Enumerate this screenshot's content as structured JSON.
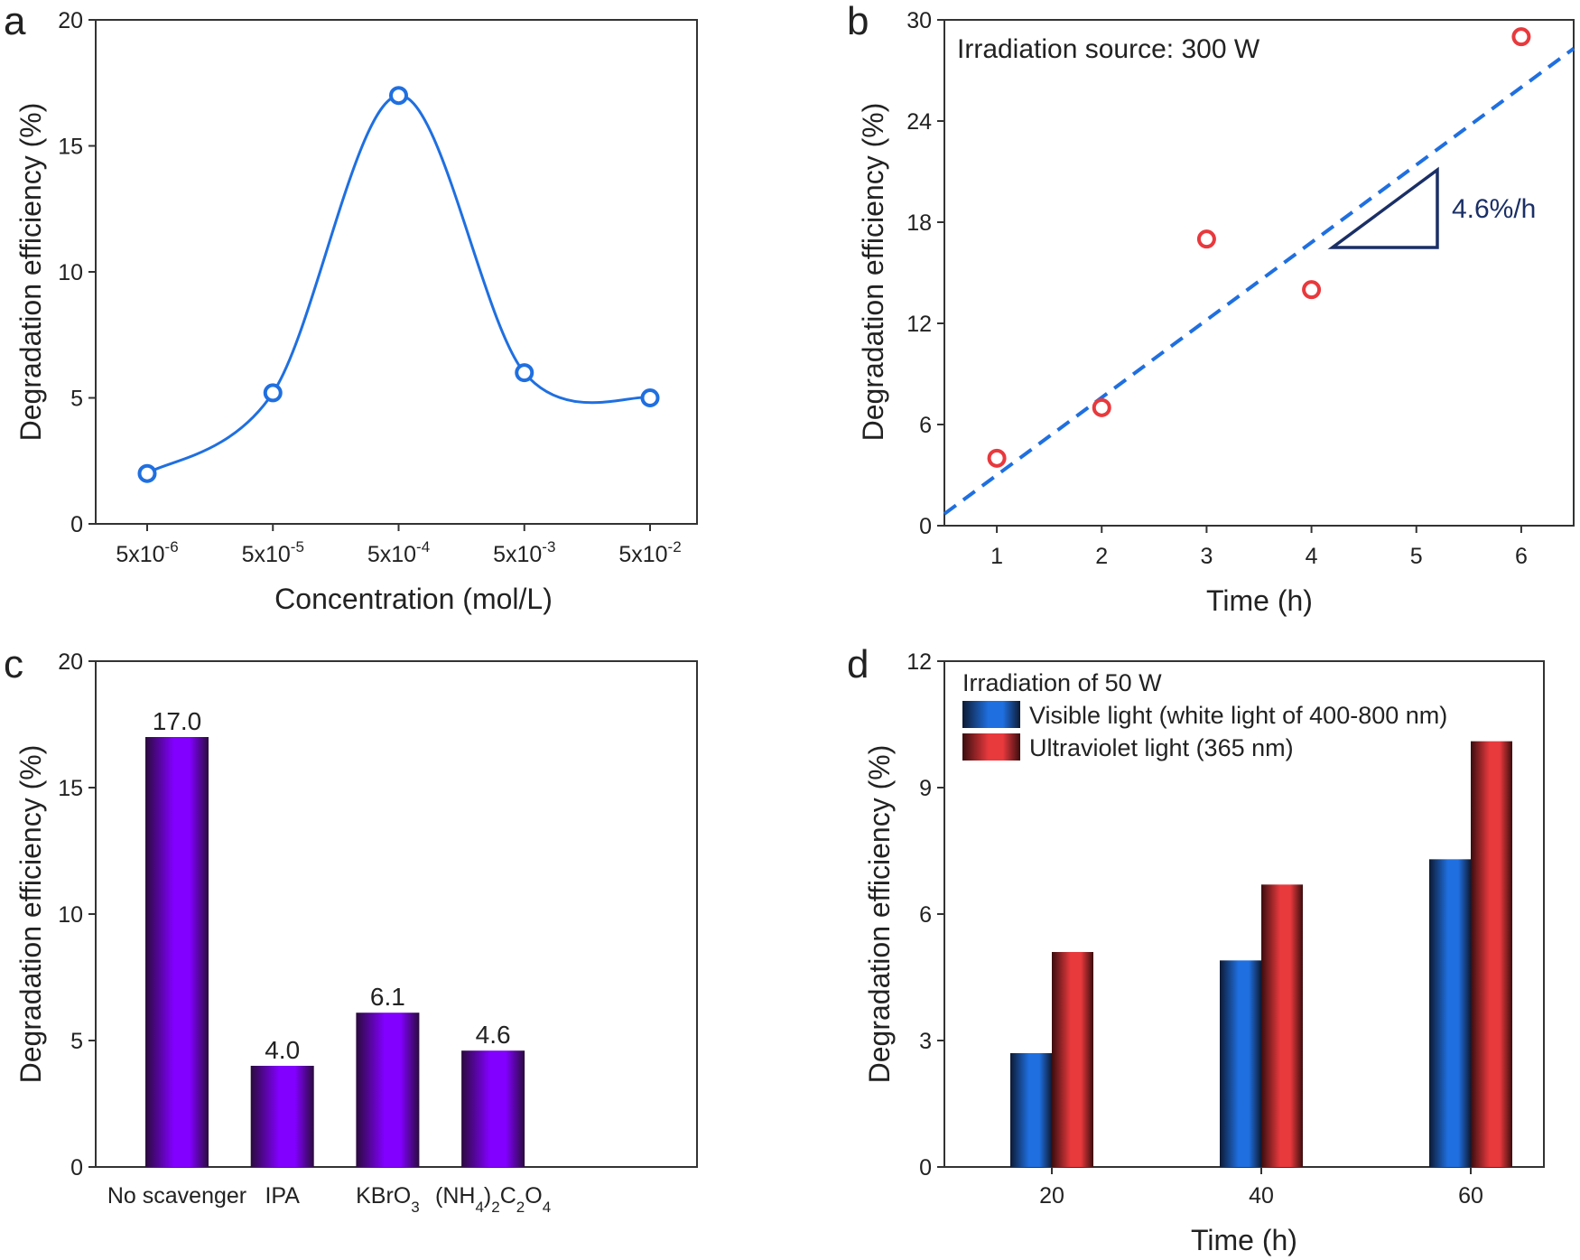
{
  "colors": {
    "blue": "#1f6fe0",
    "red": "#e8393d",
    "purple": "#8200ff",
    "navy": "#1a2f66",
    "axis": "#333333"
  },
  "chart_data": [
    {
      "panel": "a",
      "type": "line",
      "categories": [
        "5x10-6",
        "5x10-5",
        "5x10-4",
        "5x10-3",
        "5x10-2"
      ],
      "tick_labels": [
        {
          "base": "5x10",
          "exp": "-6"
        },
        {
          "base": "5x10",
          "exp": "-5"
        },
        {
          "base": "5x10",
          "exp": "-4"
        },
        {
          "base": "5x10",
          "exp": "-3"
        },
        {
          "base": "5x10",
          "exp": "-2"
        }
      ],
      "values": [
        2,
        5.2,
        17,
        6,
        5
      ],
      "xlabel": "Concentration (mol/L)",
      "ylabel": "Degradation efficiency (%)",
      "ylim": [
        0,
        20
      ],
      "yticks": [
        0,
        5,
        10,
        15,
        20
      ],
      "grid": false,
      "marker": "open-circle",
      "color": "#1f6fe0"
    },
    {
      "panel": "b",
      "type": "scatter",
      "x": [
        1,
        2,
        3,
        4,
        6
      ],
      "y": [
        4,
        7,
        17,
        14,
        29
      ],
      "fit": {
        "style": "dashed",
        "slope": 4.6,
        "intercept": -1.6,
        "x_range": [
          0.5,
          6.5
        ],
        "color": "#1f6fe0"
      },
      "annotation_text": "Irradiation source: 300 W",
      "slope_label": "4.6%/h",
      "xlabel": "Time (h)",
      "ylabel": "Degradation efficiency (%)",
      "xlim": [
        0.5,
        6.5
      ],
      "xticks": [
        1,
        2,
        3,
        4,
        5,
        6
      ],
      "ylim": [
        0,
        30
      ],
      "yticks": [
        0,
        6,
        12,
        18,
        24,
        30
      ],
      "grid": false,
      "marker_color": "#e8393d"
    },
    {
      "panel": "c",
      "type": "bar",
      "categories": [
        "No scavenger",
        "IPA",
        "KBrO3",
        "(NH4)2C2O4"
      ],
      "category_labels": [
        [
          {
            "t": "No scavenger"
          }
        ],
        [
          {
            "t": "IPA"
          }
        ],
        [
          {
            "t": "KBrO"
          },
          {
            "t": "3",
            "sub": true
          }
        ],
        [
          {
            "t": "(NH"
          },
          {
            "t": "4",
            "sub": true
          },
          {
            "t": ")"
          },
          {
            "t": "2",
            "sub": true
          },
          {
            "t": "C"
          },
          {
            "t": "2",
            "sub": true
          },
          {
            "t": "O"
          },
          {
            "t": "4",
            "sub": true
          }
        ]
      ],
      "values": [
        17.0,
        4.0,
        6.1,
        4.6
      ],
      "value_labels": [
        "17.0",
        "4.0",
        "6.1",
        "4.6"
      ],
      "xlabel": "",
      "ylabel": "Degradation efficiency (%)",
      "ylim": [
        0,
        20
      ],
      "yticks": [
        0,
        5,
        10,
        15,
        20
      ],
      "grid": false,
      "color": "#8200ff"
    },
    {
      "panel": "d",
      "type": "bar",
      "categories": [
        "20",
        "40",
        "60"
      ],
      "series": [
        {
          "name": "Visible light (white light of 400-800 nm)",
          "values": [
            2.7,
            4.9,
            7.3
          ],
          "color": "#1f6fe0"
        },
        {
          "name": "Ultraviolet light (365 nm)",
          "values": [
            5.1,
            6.7,
            10.1
          ],
          "color": "#e8393d"
        }
      ],
      "legend_title": "Irradiation of 50 W",
      "legend_position": "top-left",
      "xlabel": "Time (h)",
      "ylabel": "Degradation efficiency (%)",
      "ylim": [
        0,
        12
      ],
      "yticks": [
        0,
        3,
        6,
        9,
        12
      ],
      "grid": false
    }
  ]
}
